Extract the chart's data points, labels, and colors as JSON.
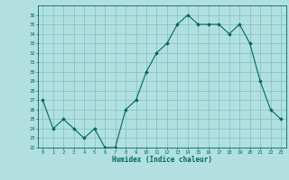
{
  "x": [
    0,
    1,
    2,
    3,
    4,
    5,
    6,
    7,
    8,
    9,
    10,
    11,
    12,
    13,
    14,
    15,
    16,
    17,
    18,
    19,
    20,
    21,
    22,
    23
  ],
  "y": [
    27,
    24,
    25,
    24,
    23,
    24,
    22,
    22,
    26,
    27,
    30,
    32,
    33,
    35,
    36,
    35,
    35,
    35,
    34,
    35,
    33,
    29,
    26,
    25
  ],
  "xlabel": "Humidex (Indice chaleur)",
  "line_color": "#006666",
  "marker_color": "#006666",
  "bg_color": "#b2e0e0",
  "grid_color": "#7bbfbf",
  "ylim": [
    22,
    37
  ],
  "xlim": [
    -0.5,
    23.5
  ],
  "yticks": [
    22,
    23,
    24,
    25,
    26,
    27,
    28,
    29,
    30,
    31,
    32,
    33,
    34,
    35,
    36
  ],
  "xticks": [
    0,
    1,
    2,
    3,
    4,
    5,
    6,
    7,
    8,
    9,
    10,
    11,
    12,
    13,
    14,
    15,
    16,
    17,
    18,
    19,
    20,
    21,
    22,
    23
  ]
}
